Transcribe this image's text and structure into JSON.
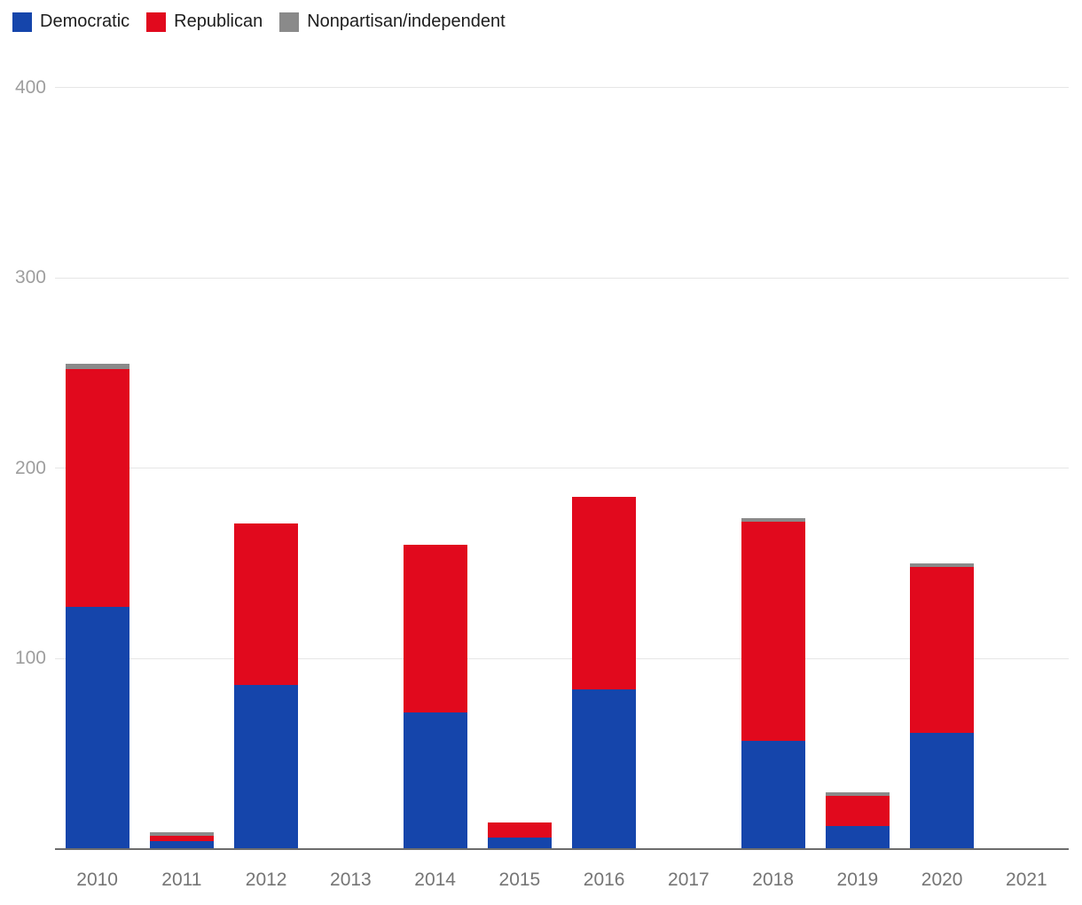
{
  "chart_data": {
    "type": "bar",
    "stacked": true,
    "title": "",
    "xlabel": "",
    "ylabel": "",
    "categories": [
      "2010",
      "2011",
      "2012",
      "2013",
      "2014",
      "2015",
      "2016",
      "2017",
      "2018",
      "2019",
      "2020",
      "2021"
    ],
    "series": [
      {
        "name": "Democratic",
        "color": "#1545ab",
        "values": [
          127,
          4,
          86,
          0,
          72,
          6,
          84,
          0,
          57,
          12,
          61,
          0
        ]
      },
      {
        "name": "Republican",
        "color": "#e1091d",
        "values": [
          125,
          3,
          85,
          0,
          88,
          8,
          101,
          0,
          115,
          16,
          87,
          0
        ]
      },
      {
        "name": "Nonpartisan/independent",
        "color": "#8a8a8a",
        "values": [
          3,
          2,
          0,
          0,
          0,
          0,
          0,
          0,
          2,
          2,
          2,
          0
        ]
      }
    ],
    "totals": {
      "2010": 255,
      "2011": 9,
      "2012": 171,
      "2013": 0,
      "2014": 160,
      "2015": 14,
      "2016": 185,
      "2017": 0,
      "2018": 174,
      "2019": 30,
      "2020": 150,
      "2021": 0
    },
    "ylim": [
      0,
      418
    ],
    "yticks": [
      100,
      200,
      300,
      400
    ],
    "grid": true,
    "legend_position": "top-left",
    "colors": {
      "y_tick_label": "#9e9e9e",
      "x_tick_label": "#757575",
      "gridline": "#e6e6e6",
      "baseline": "#6d6d6d",
      "background": "#ffffff"
    }
  }
}
